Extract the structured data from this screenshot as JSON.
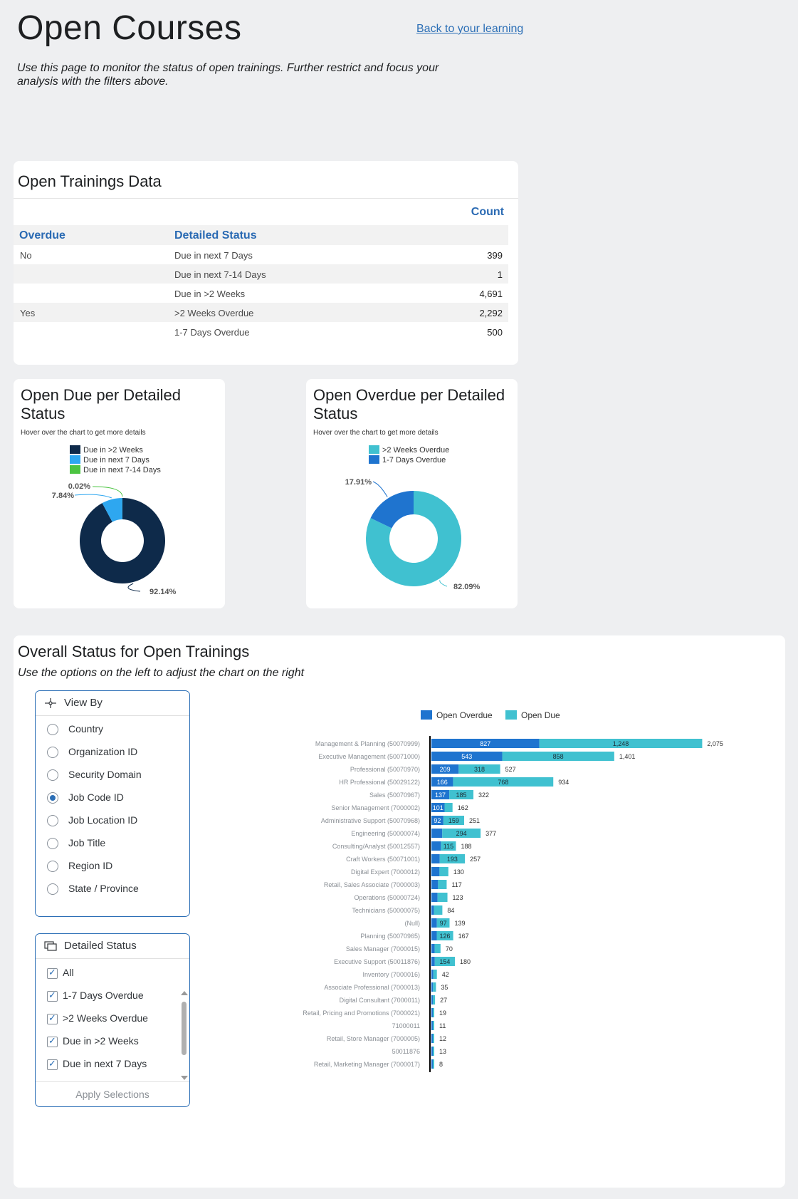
{
  "header": {
    "title": "Open Courses",
    "back_link": "Back to your learning",
    "intro": "Use this page to monitor the status of open trainings. Further restrict and focus your analysis with the filters above."
  },
  "table_card": {
    "title": "Open Trainings Data",
    "count_header": "Count",
    "col_overdue": "Overdue",
    "col_status": "Detailed Status",
    "rows": [
      {
        "overdue": "No",
        "status": "Due in next 7 Days",
        "count": "399"
      },
      {
        "overdue": "",
        "status": "Due in next 7-14 Days",
        "count": "1"
      },
      {
        "overdue": "",
        "status": "Due in >2 Weeks",
        "count": "4,691"
      },
      {
        "overdue": "Yes",
        "status": ">2 Weeks Overdue",
        "count": "2,292"
      },
      {
        "overdue": "",
        "status": "1-7 Days Overdue",
        "count": "500"
      }
    ]
  },
  "due_chart": {
    "title": "Open Due per Detailed Status",
    "hint": "Hover over the chart to get more details",
    "legend": [
      "Due in >2 Weeks",
      "Due in next 7 Days",
      "Due in next 7-14 Days"
    ],
    "colors": [
      "#0e2a4a",
      "#2ea7f0",
      "#4cc442"
    ],
    "percent_labels": [
      "92.14%",
      "7.84%",
      "0.02%"
    ]
  },
  "overdue_chart": {
    "title": "Open Overdue per Detailed Status",
    "hint": "Hover over the chart to get more details",
    "legend": [
      ">2 Weeks Overdue",
      "1-7 Days Overdue"
    ],
    "colors": [
      "#40c1d0",
      "#1f74cf"
    ],
    "percent_labels": [
      "82.09%",
      "17.91%"
    ]
  },
  "overall": {
    "title": "Overall Status for Open Trainings",
    "subtitle": "Use the options on the left to adjust the chart on the right",
    "view_by": {
      "title": "View By",
      "options": [
        "Country",
        "Organization ID",
        "Security Domain",
        "Job Code ID",
        "Job Location ID",
        "Job Title",
        "Region ID",
        "State / Province"
      ],
      "selected": "Job Code ID"
    },
    "status_filter": {
      "title": "Detailed Status",
      "options": [
        "All",
        "1-7 Days Overdue",
        ">2 Weeks Overdue",
        "Due in >2 Weeks",
        "Due in next 7 Days"
      ],
      "apply_label": "Apply Selections"
    }
  },
  "chart_data": [
    {
      "type": "pie",
      "title": "Open Due per Detailed Status",
      "labels": [
        "Due in >2 Weeks",
        "Due in next 7 Days",
        "Due in next 7-14 Days"
      ],
      "values": [
        4691,
        399,
        1
      ],
      "percents": [
        92.14,
        7.84,
        0.02
      ]
    },
    {
      "type": "pie",
      "title": "Open Overdue per Detailed Status",
      "labels": [
        ">2 Weeks Overdue",
        "1-7 Days Overdue"
      ],
      "values": [
        2292,
        500
      ],
      "percents": [
        82.09,
        17.91
      ]
    },
    {
      "type": "bar",
      "orientation": "horizontal",
      "stacked": true,
      "legend_position": "top",
      "categories": [
        "Management & Planning (50070999)",
        "Executive Management (50071000)",
        "Professional (50070970)",
        "HR Professional (50029122)",
        "Sales (50070967)",
        "Senior Management (7000002)",
        "Administrative Support (50070968)",
        "Engineering (50000074)",
        "Consulting/Analyst (50012557)",
        "Craft Workers (50071001)",
        "Digital Expert (7000012)",
        "Retail, Sales Associate (7000003)",
        "Operations (50000724)",
        "Technicians (50000075)",
        "(Null)",
        "Planning (50070965)",
        "Sales Manager (7000015)",
        "Executive Support (50011876)",
        "Inventory (7000016)",
        "Associate Professional (7000013)",
        "Digital Consultant (7000011)",
        "Retail, Pricing and Promotions (7000021)",
        "71000011",
        "Retail, Store Manager (7000005)",
        "50011876",
        "Retail, Marketing Manager (7000017)"
      ],
      "series": [
        {
          "name": "Open Overdue",
          "values": [
            827,
            543,
            209,
            166,
            137,
            101,
            92,
            83,
            73,
            64,
            62,
            51,
            47,
            20,
            42,
            41,
            25,
            26,
            15,
            12,
            10,
            8,
            4,
            5,
            5,
            3
          ]
        },
        {
          "name": "Open Due",
          "values": [
            1248,
            858,
            318,
            768,
            185,
            61,
            159,
            294,
            115,
            193,
            68,
            66,
            76,
            64,
            97,
            126,
            45,
            154,
            27,
            23,
            17,
            11,
            7,
            7,
            8,
            5
          ]
        }
      ],
      "totals": [
        2075,
        1401,
        527,
        934,
        322,
        162,
        251,
        377,
        188,
        257,
        130,
        117,
        123,
        84,
        139,
        167,
        70,
        180,
        42,
        35,
        27,
        19,
        11,
        12,
        13,
        8
      ],
      "colors": [
        "#1f74cf",
        "#40c1d0"
      ],
      "xlim": [
        0,
        2100
      ]
    }
  ]
}
